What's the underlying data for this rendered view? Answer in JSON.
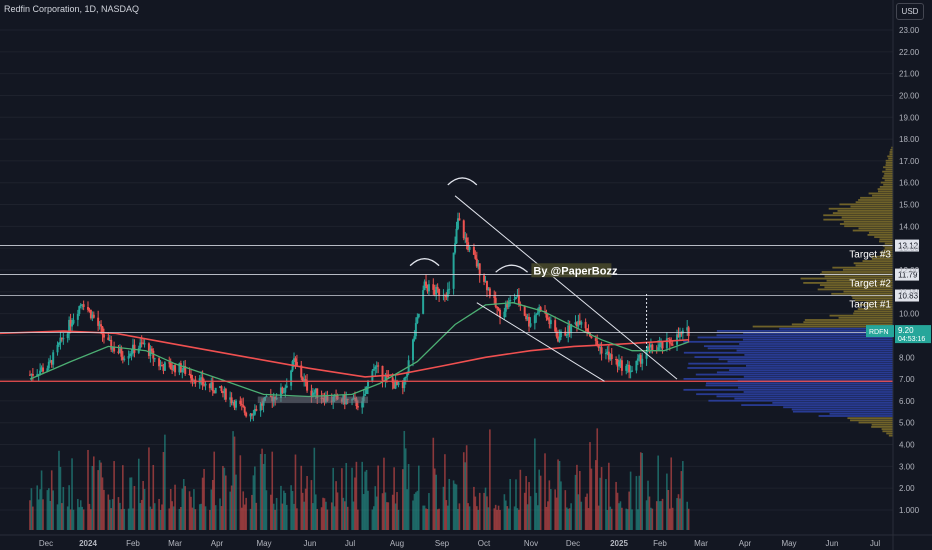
{
  "header": {
    "title": "Redfin Corporation, 1D, NASDAQ",
    "currency": "USD"
  },
  "colors": {
    "background": "#131722",
    "up": "#26a69a",
    "down": "#ef5350",
    "ma_fast": "#4caf73",
    "ma_slow": "#f05050",
    "profile_blue": "#2b3fa0",
    "profile_gold": "#7a6a2a",
    "hline": "#cfd3dc",
    "axis_text": "#b2b5be",
    "rdfn_tag": "#26a69a"
  },
  "chart_data": {
    "type": "candlestick",
    "symbol": "RDFN",
    "ylim": [
      0,
      24
    ],
    "y_ticks": [
      "23.00",
      "22.00",
      "21.00",
      "20.00",
      "19.00",
      "18.00",
      "17.00",
      "16.00",
      "15.00",
      "14.00",
      "13.00",
      "12.00",
      "11.00",
      "10.00",
      "9.00",
      "8.00",
      "7.00",
      "6.00",
      "5.00",
      "4.00",
      "3.00",
      "2.00",
      "1.000"
    ],
    "x_ticks": [
      "Dec",
      "2024",
      "Feb",
      "Mar",
      "Apr",
      "May",
      "Jun",
      "Jul",
      "Aug",
      "Sep",
      "Oct",
      "Nov",
      "Dec",
      "2025",
      "Feb",
      "Mar",
      "Apr",
      "May",
      "Jun",
      "Jul"
    ],
    "price_keypoints": [
      [
        "2023-11-22",
        7.2
      ],
      [
        "2023-12-05",
        7.6
      ],
      [
        "2023-12-20",
        9.6
      ],
      [
        "2023-12-28",
        10.6
      ],
      [
        "2024-01-05",
        9.8
      ],
      [
        "2024-01-15",
        8.6
      ],
      [
        "2024-01-25",
        8.1
      ],
      [
        "2024-02-08",
        8.6
      ],
      [
        "2024-02-20",
        7.6
      ],
      [
        "2024-03-05",
        7.5
      ],
      [
        "2024-03-20",
        6.8
      ],
      [
        "2024-04-05",
        6.3
      ],
      [
        "2024-04-20",
        5.4
      ],
      [
        "2024-05-01",
        5.9
      ],
      [
        "2024-05-15",
        6.5
      ],
      [
        "2024-05-22",
        7.8
      ],
      [
        "2024-06-01",
        6.5
      ],
      [
        "2024-06-15",
        6.1
      ],
      [
        "2024-06-30",
        6.0
      ],
      [
        "2024-07-08",
        5.8
      ],
      [
        "2024-07-15",
        7.6
      ],
      [
        "2024-07-25",
        7.0
      ],
      [
        "2024-08-05",
        6.5
      ],
      [
        "2024-08-12",
        8.7
      ],
      [
        "2024-08-20",
        11.3
      ],
      [
        "2024-08-27",
        11.0
      ],
      [
        "2024-09-06",
        11.0
      ],
      [
        "2024-09-12",
        14.3
      ],
      [
        "2024-09-20",
        12.9
      ],
      [
        "2024-09-30",
        11.6
      ],
      [
        "2024-10-10",
        10.0
      ],
      [
        "2024-10-22",
        10.8
      ],
      [
        "2024-10-31",
        9.6
      ],
      [
        "2024-11-08",
        10.3
      ],
      [
        "2024-11-20",
        8.9
      ],
      [
        "2024-11-28",
        9.3
      ],
      [
        "2024-12-06",
        9.8
      ],
      [
        "2024-12-16",
        8.6
      ],
      [
        "2024-12-31",
        7.7
      ],
      [
        "2025-01-10",
        7.4
      ],
      [
        "2025-01-20",
        8.3
      ],
      [
        "2025-01-31",
        8.5
      ],
      [
        "2025-02-10",
        8.9
      ],
      [
        "2025-02-18",
        9.2
      ]
    ],
    "ma_fast": [
      [
        "2023-11-22",
        7.0
      ],
      [
        "2023-12-20",
        7.8
      ],
      [
        "2024-01-15",
        8.5
      ],
      [
        "2024-02-10",
        8.3
      ],
      [
        "2024-03-01",
        7.7
      ],
      [
        "2024-04-01",
        7.0
      ],
      [
        "2024-05-01",
        6.3
      ],
      [
        "2024-06-01",
        6.2
      ],
      [
        "2024-07-01",
        6.3
      ],
      [
        "2024-07-20",
        6.8
      ],
      [
        "2024-08-15",
        7.8
      ],
      [
        "2024-09-10",
        9.5
      ],
      [
        "2024-10-01",
        10.4
      ],
      [
        "2024-10-20",
        10.5
      ],
      [
        "2024-11-10",
        10.1
      ],
      [
        "2024-12-01",
        9.4
      ],
      [
        "2024-12-20",
        8.8
      ],
      [
        "2025-01-10",
        8.3
      ],
      [
        "2025-02-01",
        8.3
      ],
      [
        "2025-02-18",
        8.7
      ]
    ],
    "ma_slow": [
      [
        "2023-11-01",
        9.1
      ],
      [
        "2023-12-15",
        9.2
      ],
      [
        "2024-01-20",
        9.1
      ],
      [
        "2024-03-01",
        8.6
      ],
      [
        "2024-04-20",
        8.0
      ],
      [
        "2024-06-01",
        7.5
      ],
      [
        "2024-07-10",
        7.1
      ],
      [
        "2024-08-01",
        7.2
      ],
      [
        "2024-09-01",
        7.6
      ],
      [
        "2024-10-01",
        8.0
      ],
      [
        "2024-11-01",
        8.3
      ],
      [
        "2024-12-01",
        8.5
      ],
      [
        "2025-01-01",
        8.6
      ],
      [
        "2025-02-18",
        8.8
      ]
    ],
    "horizontal_levels": [
      {
        "price": 13.12,
        "label": "13.12",
        "target": "Target #3"
      },
      {
        "price": 11.79,
        "label": "11.79",
        "target": "Target #2"
      },
      {
        "price": 10.83,
        "label": "10.83",
        "target": "Target #1"
      },
      {
        "price": 9.13,
        "label": "9.13",
        "target": ""
      }
    ],
    "support_level": 6.9,
    "current_price": {
      "symbol": "RDFN",
      "value": "9.20",
      "countdown": "04:53:16"
    },
    "annotation": "By @PaperBozz",
    "volume_profile_peaks": [
      [
        7.0,
        1.0
      ],
      [
        8.0,
        0.8
      ],
      [
        9.0,
        0.75
      ],
      [
        6.0,
        0.6
      ],
      [
        11.5,
        0.45
      ],
      [
        14.5,
        0.35
      ],
      [
        16.5,
        0.05
      ]
    ]
  }
}
